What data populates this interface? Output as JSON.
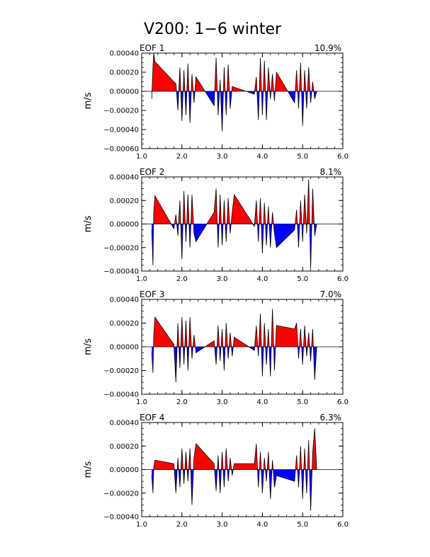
{
  "title": "V200: 1−6 winter",
  "colors": {
    "positive": "#ff0000",
    "negative": "#0000ff",
    "outline": "#000000"
  },
  "chart_data": [
    {
      "type": "area",
      "panel_label": "EOF 1",
      "variance": "10.9%",
      "ylabel": "m/s",
      "xlim": [
        1.0,
        6.0
      ],
      "ylim": [
        -0.0006,
        0.0004
      ],
      "x_ticks": [
        "1.0",
        "2.0",
        "3.0",
        "4.0",
        "5.0",
        "6.0"
      ],
      "x_tick_values": [
        1,
        2,
        3,
        4,
        5,
        6
      ],
      "y_ticks": [
        "0.00040",
        "0.00020",
        "0.00000",
        "−0.00020",
        "−0.00040",
        "−0.00060"
      ],
      "y_tick_values": [
        0.0004,
        0.0002,
        0,
        -0.0002,
        -0.0004,
        -0.0006
      ],
      "x": [
        1.25,
        1.28,
        1.3,
        1.33,
        1.8,
        1.85,
        1.9,
        1.95,
        2.0,
        2.05,
        2.1,
        2.15,
        2.2,
        2.25,
        2.3,
        2.35,
        2.8,
        2.85,
        2.9,
        2.95,
        3.0,
        3.05,
        3.1,
        3.15,
        3.2,
        3.25,
        3.8,
        3.85,
        3.9,
        3.95,
        4.0,
        4.05,
        4.1,
        4.15,
        4.2,
        4.25,
        4.3,
        4.35,
        4.8,
        4.85,
        4.9,
        4.95,
        5.0,
        5.05,
        5.1,
        5.15,
        5.2,
        5.25,
        5.3,
        5.35
      ],
      "y": [
        -8e-05,
        0.00025,
        0.0004,
        0.00031,
        0.0001,
        8e-05,
        -0.0002,
        0.00025,
        -0.00031,
        0.00022,
        -0.00025,
        0.00029,
        -0.00033,
        0.00018,
        -0.00012,
        0.00015,
        -0.00015,
        0.00035,
        -0.00025,
        0.00012,
        -0.00042,
        0.00025,
        -0.00025,
        0.00028,
        -0.00018,
        5e-05,
        -3e-05,
        0.00015,
        -0.0003,
        0.00035,
        -0.00025,
        0.00032,
        -0.0003,
        0.00025,
        -8e-05,
        0.00018,
        -0.0001,
        0.0002,
        -0.00012,
        0.00022,
        -0.00018,
        0.0003,
        -0.00036,
        0.00022,
        -0.00018,
        0.00025,
        -0.00012,
        0.0001,
        -8e-05,
        0.0
      ]
    },
    {
      "type": "area",
      "panel_label": "EOF 2",
      "variance": "8.1%",
      "ylabel": "m/s",
      "xlim": [
        1.0,
        6.0
      ],
      "ylim": [
        -0.0004,
        0.0004
      ],
      "x_ticks": [
        "1.0",
        "2.0",
        "3.0",
        "4.0",
        "5.0",
        "6.0"
      ],
      "x_tick_values": [
        1,
        2,
        3,
        4,
        5,
        6
      ],
      "y_ticks": [
        "0.00040",
        "0.00020",
        "0.00000",
        "−0.00020",
        "−0.00040"
      ],
      "y_tick_values": [
        0.0004,
        0.0002,
        0,
        -0.0002,
        -0.0004
      ],
      "x": [
        1.25,
        1.28,
        1.3,
        1.33,
        1.8,
        1.85,
        1.9,
        1.95,
        2.0,
        2.05,
        2.1,
        2.15,
        2.2,
        2.25,
        2.3,
        2.35,
        2.8,
        2.85,
        2.9,
        2.95,
        3.0,
        3.05,
        3.1,
        3.15,
        3.2,
        3.25,
        3.3,
        3.8,
        3.85,
        3.9,
        3.95,
        4.0,
        4.05,
        4.1,
        4.15,
        4.2,
        4.25,
        4.3,
        4.35,
        4.8,
        4.85,
        4.9,
        4.95,
        5.0,
        5.05,
        5.1,
        5.15,
        5.2,
        5.25,
        5.3,
        5.35
      ],
      "y": [
        -5e-05,
        -0.00035,
        0.0001,
        0.00024,
        -4e-05,
        8e-05,
        -0.0001,
        0.0002,
        -0.0003,
        0.00028,
        -0.00015,
        0.00025,
        -0.0002,
        0.00025,
        -8e-05,
        -0.00015,
        0.0001,
        0.0003,
        -0.0002,
        0.00025,
        -0.00018,
        0.0002,
        -0.00015,
        0.00022,
        -8e-05,
        0.0001,
        0.00025,
        -2e-05,
        0.0002,
        -0.00015,
        0.00022,
        -0.00025,
        0.00018,
        -0.00018,
        0.00015,
        -0.0002,
        0.0001,
        -8e-05,
        -0.0002,
        -5e-05,
        0.00012,
        -0.0002,
        0.0002,
        -0.00015,
        0.00025,
        -8e-05,
        0.00038,
        -0.00038,
        0.0003,
        -0.0001,
        0.0
      ]
    },
    {
      "type": "area",
      "panel_label": "EOF 3",
      "variance": "7.0%",
      "ylabel": "m/s",
      "xlim": [
        1.0,
        6.0
      ],
      "ylim": [
        -0.0004,
        0.0004
      ],
      "x_ticks": [
        "1.0",
        "2.0",
        "3.0",
        "4.0",
        "5.0",
        "6.0"
      ],
      "x_tick_values": [
        1,
        2,
        3,
        4,
        5,
        6
      ],
      "y_ticks": [
        "0.00040",
        "0.00020",
        "0.00000",
        "−0.00020",
        "−0.00040"
      ],
      "y_tick_values": [
        0.0004,
        0.0002,
        0,
        -0.0002,
        -0.0004
      ],
      "x": [
        1.25,
        1.28,
        1.3,
        1.33,
        1.8,
        1.85,
        1.9,
        1.95,
        2.0,
        2.05,
        2.1,
        2.15,
        2.2,
        2.25,
        2.3,
        2.35,
        2.8,
        2.85,
        2.9,
        2.95,
        3.0,
        3.05,
        3.1,
        3.15,
        3.2,
        3.25,
        3.3,
        3.8,
        3.85,
        3.9,
        3.95,
        4.0,
        4.05,
        4.1,
        4.15,
        4.2,
        4.25,
        4.3,
        4.35,
        4.8,
        4.85,
        4.9,
        4.95,
        5.0,
        5.05,
        5.1,
        5.15,
        5.2,
        5.25,
        5.3,
        5.35
      ],
      "y": [
        -5e-05,
        -0.00022,
        0.0001,
        0.00025,
        2e-05,
        -0.0003,
        0.0002,
        -0.00018,
        0.00025,
        -0.00015,
        0.00022,
        -0.0002,
        0.00025,
        -0.0001,
        0.0001,
        -5e-05,
        5e-05,
        -0.00015,
        0.00018,
        -0.00012,
        0.00015,
        -0.0002,
        0.0002,
        -0.0001,
        0.00012,
        -8e-05,
        8e-05,
        -3e-05,
        0.00018,
        -8e-05,
        0.00028,
        -0.00025,
        0.0002,
        -0.00015,
        0.00015,
        -0.00025,
        0.00032,
        -0.0002,
        0.00018,
        0.00015,
        0.0002,
        -0.0001,
        0.00015,
        -0.00015,
        0.00018,
        -8e-05,
        0.00012,
        -0.00012,
        0.00015,
        -0.00028,
        0.0
      ]
    },
    {
      "type": "area",
      "panel_label": "EOF 4",
      "variance": "6.3%",
      "ylabel": "m/s",
      "xlim": [
        1.0,
        6.0
      ],
      "ylim": [
        -0.0004,
        0.0004
      ],
      "x_ticks": [
        "1.0",
        "2.0",
        "3.0",
        "4.0",
        "5.0",
        "6.0"
      ],
      "x_tick_values": [
        1,
        2,
        3,
        4,
        5,
        6
      ],
      "y_ticks": [
        "0.00040",
        "0.00020",
        "0.00000",
        "−0.00020",
        "−0.00040"
      ],
      "y_tick_values": [
        0.0004,
        0.0002,
        0,
        -0.0002,
        -0.0004
      ],
      "x": [
        1.25,
        1.28,
        1.3,
        1.33,
        1.8,
        1.85,
        1.9,
        1.95,
        2.0,
        2.05,
        2.1,
        2.15,
        2.2,
        2.25,
        2.3,
        2.35,
        2.8,
        2.85,
        2.9,
        2.95,
        3.0,
        3.05,
        3.1,
        3.15,
        3.2,
        3.25,
        3.3,
        3.8,
        3.85,
        3.9,
        3.95,
        4.0,
        4.05,
        4.1,
        4.15,
        4.2,
        4.25,
        4.3,
        4.35,
        4.8,
        4.85,
        4.9,
        4.95,
        5.0,
        5.05,
        5.1,
        5.15,
        5.2,
        5.25,
        5.3,
        5.35
      ],
      "y": [
        -5e-05,
        -0.0002,
        2e-05,
        8e-05,
        5e-05,
        -0.0002,
        0.0001,
        -0.00015,
        0.00018,
        -0.00012,
        0.00015,
        -0.0001,
        0.00018,
        -0.0003,
        0.0001,
        0.00022,
        5e-05,
        -0.00018,
        0.00012,
        -0.0002,
        0.00015,
        -0.00015,
        0.00018,
        -0.0001,
        0.0001,
        -5e-05,
        5e-05,
        5e-05,
        0.00022,
        -0.00015,
        0.00015,
        -0.0002,
        0.0001,
        -0.0001,
        0.00015,
        -0.00025,
        8e-05,
        -0.00015,
        -5e-05,
        -0.0001,
        0.00012,
        -0.00015,
        0.0002,
        -0.00025,
        0.00018,
        -0.0002,
        0.00025,
        -0.00035,
        0.00015,
        0.00035,
        0.0
      ]
    }
  ]
}
